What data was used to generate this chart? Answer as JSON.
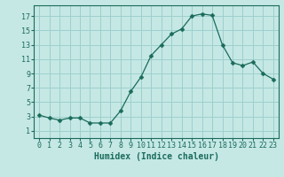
{
  "x_values": [
    0,
    1,
    2,
    3,
    4,
    5,
    6,
    7,
    8,
    9,
    10,
    11,
    12,
    13,
    14,
    15,
    16,
    17,
    18,
    19,
    20,
    21,
    22,
    23
  ],
  "y_values": [
    3.2,
    2.8,
    2.5,
    2.8,
    2.8,
    2.1,
    2.1,
    2.1,
    3.8,
    6.5,
    8.5,
    11.5,
    13.0,
    14.5,
    15.2,
    17.0,
    17.3,
    17.1,
    13.0,
    10.5,
    10.1,
    10.6,
    9.0,
    8.2
  ],
  "line_color": "#1a6b5a",
  "marker": "D",
  "marker_size": 2.5,
  "bg_color": "#c5e8e5",
  "grid_color": "#9dcfcc",
  "xlabel": "Humidex (Indice chaleur)",
  "xlim": [
    -0.5,
    23.5
  ],
  "ylim": [
    0,
    18.5
  ],
  "yticks": [
    1,
    3,
    5,
    7,
    9,
    11,
    13,
    15,
    17
  ],
  "xticks": [
    0,
    1,
    2,
    3,
    4,
    5,
    6,
    7,
    8,
    9,
    10,
    11,
    12,
    13,
    14,
    15,
    16,
    17,
    18,
    19,
    20,
    21,
    22,
    23
  ],
  "xlabel_fontsize": 7,
  "tick_fontsize": 6
}
